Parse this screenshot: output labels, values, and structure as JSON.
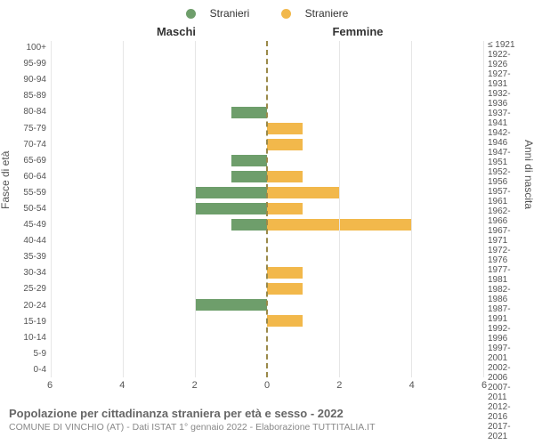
{
  "legend": {
    "male": {
      "label": "Stranieri",
      "color": "#6e9e6b"
    },
    "female": {
      "label": "Straniere",
      "color": "#f2b84b"
    }
  },
  "col_titles": {
    "left": "Maschi",
    "right": "Femmine"
  },
  "yaxis_left_label": "Fasce di età",
  "yaxis_right_label": "Anni di nascita",
  "xaxis": {
    "max": 6,
    "ticks": [
      6,
      4,
      2,
      0,
      2,
      4,
      6
    ]
  },
  "grid_color": "#e6e6e6",
  "center_line_color": "#9a8a4a",
  "background_color": "#ffffff",
  "rows": [
    {
      "age": "100+",
      "birth": "≤ 1921",
      "m": 0,
      "f": 0
    },
    {
      "age": "95-99",
      "birth": "1922-1926",
      "m": 0,
      "f": 0
    },
    {
      "age": "90-94",
      "birth": "1927-1931",
      "m": 0,
      "f": 0
    },
    {
      "age": "85-89",
      "birth": "1932-1936",
      "m": 0,
      "f": 0
    },
    {
      "age": "80-84",
      "birth": "1937-1941",
      "m": 1,
      "f": 0
    },
    {
      "age": "75-79",
      "birth": "1942-1946",
      "m": 0,
      "f": 1
    },
    {
      "age": "70-74",
      "birth": "1947-1951",
      "m": 0,
      "f": 1
    },
    {
      "age": "65-69",
      "birth": "1952-1956",
      "m": 1,
      "f": 0
    },
    {
      "age": "60-64",
      "birth": "1957-1961",
      "m": 1,
      "f": 1
    },
    {
      "age": "55-59",
      "birth": "1962-1966",
      "m": 2,
      "f": 2
    },
    {
      "age": "50-54",
      "birth": "1967-1971",
      "m": 2,
      "f": 1
    },
    {
      "age": "45-49",
      "birth": "1972-1976",
      "m": 1,
      "f": 4
    },
    {
      "age": "40-44",
      "birth": "1977-1981",
      "m": 0,
      "f": 0
    },
    {
      "age": "35-39",
      "birth": "1982-1986",
      "m": 0,
      "f": 0
    },
    {
      "age": "30-34",
      "birth": "1987-1991",
      "m": 0,
      "f": 1
    },
    {
      "age": "25-29",
      "birth": "1992-1996",
      "m": 0,
      "f": 1
    },
    {
      "age": "20-24",
      "birth": "1997-2001",
      "m": 2,
      "f": 0
    },
    {
      "age": "15-19",
      "birth": "2002-2006",
      "m": 0,
      "f": 1
    },
    {
      "age": "10-14",
      "birth": "2007-2011",
      "m": 0,
      "f": 0
    },
    {
      "age": "5-9",
      "birth": "2012-2016",
      "m": 0,
      "f": 0
    },
    {
      "age": "0-4",
      "birth": "2017-2021",
      "m": 0,
      "f": 0
    }
  ],
  "footer": {
    "title": "Popolazione per cittadinanza straniera per età e sesso - 2022",
    "subtitle": "COMUNE DI VINCHIO (AT) - Dati ISTAT 1° gennaio 2022 - Elaborazione TUTTITALIA.IT"
  }
}
